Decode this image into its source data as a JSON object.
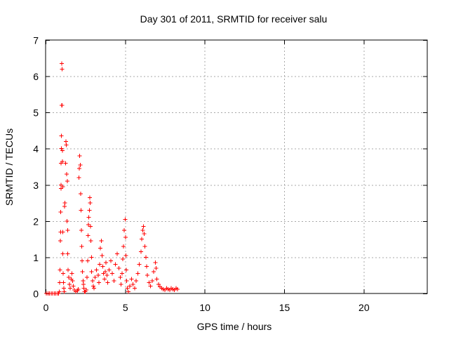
{
  "chart_data": {
    "type": "scatter",
    "title": "Day 301 of 2011, SRMTID for receiver salu",
    "xlabel": "GPS time / hours",
    "ylabel": "SRMTID / TECUs",
    "xlim": [
      0,
      24
    ],
    "ylim": [
      0,
      7
    ],
    "xticks": [
      0,
      5,
      10,
      15,
      20
    ],
    "yticks": [
      0,
      1,
      2,
      3,
      4,
      5,
      6,
      7
    ],
    "x_tick_labels": [
      "0",
      "5",
      "10",
      "15",
      "20"
    ],
    "y_tick_labels": [
      "0",
      "1",
      "2",
      "3",
      "4",
      "5",
      "6",
      "7"
    ],
    "grid": true,
    "marker": "+",
    "series": [
      {
        "name": "SRMTID",
        "color": "#ff0000",
        "points": [
          [
            0.05,
            0.0
          ],
          [
            0.15,
            0.0
          ],
          [
            0.25,
            0.0
          ],
          [
            0.35,
            0.0
          ],
          [
            0.45,
            0.0
          ],
          [
            0.55,
            0.0
          ],
          [
            0.65,
            0.0
          ],
          [
            0.75,
            0.0
          ],
          [
            0.82,
            0.0
          ],
          [
            0.85,
            0.05
          ],
          [
            0.88,
            0.3
          ],
          [
            0.9,
            0.65
          ],
          [
            0.92,
            1.45
          ],
          [
            0.94,
            1.7
          ],
          [
            0.95,
            2.25
          ],
          [
            0.96,
            2.9
          ],
          [
            0.97,
            3.0
          ],
          [
            0.98,
            3.6
          ],
          [
            0.99,
            4.0
          ],
          [
            1.0,
            4.35
          ],
          [
            1.01,
            5.2
          ],
          [
            1.02,
            6.35
          ],
          [
            1.03,
            6.2
          ],
          [
            1.04,
            5.2
          ],
          [
            1.05,
            3.95
          ],
          [
            1.06,
            3.65
          ],
          [
            1.07,
            2.95
          ],
          [
            1.08,
            1.7
          ],
          [
            1.09,
            1.1
          ],
          [
            1.1,
            0.55
          ],
          [
            1.12,
            0.3
          ],
          [
            1.15,
            0.15
          ],
          [
            1.18,
            0.05
          ],
          [
            1.2,
            2.4
          ],
          [
            1.22,
            2.5
          ],
          [
            1.25,
            3.6
          ],
          [
            1.28,
            4.2
          ],
          [
            1.3,
            4.1
          ],
          [
            1.32,
            3.3
          ],
          [
            1.35,
            2.0
          ],
          [
            1.36,
            3.1
          ],
          [
            1.38,
            1.75
          ],
          [
            1.4,
            1.1
          ],
          [
            1.42,
            0.65
          ],
          [
            1.45,
            0.45
          ],
          [
            1.5,
            0.25
          ],
          [
            1.55,
            0.15
          ],
          [
            1.6,
            0.4
          ],
          [
            1.65,
            0.55
          ],
          [
            1.7,
            0.35
          ],
          [
            1.75,
            0.2
          ],
          [
            1.8,
            0.1
          ],
          [
            1.9,
            0.05
          ],
          [
            2.0,
            0.08
          ],
          [
            2.05,
            0.12
          ],
          [
            2.1,
            3.2
          ],
          [
            2.12,
            3.45
          ],
          [
            2.15,
            3.8
          ],
          [
            2.18,
            3.55
          ],
          [
            2.2,
            2.75
          ],
          [
            2.22,
            2.3
          ],
          [
            2.25,
            1.75
          ],
          [
            2.28,
            1.3
          ],
          [
            2.3,
            0.9
          ],
          [
            2.32,
            0.6
          ],
          [
            2.35,
            0.35
          ],
          [
            2.38,
            0.25
          ],
          [
            2.4,
            0.15
          ],
          [
            2.45,
            0.05
          ],
          [
            2.5,
            0.05
          ],
          [
            2.55,
            0.1
          ],
          [
            2.6,
            0.45
          ],
          [
            2.65,
            0.9
          ],
          [
            2.68,
            1.6
          ],
          [
            2.7,
            1.9
          ],
          [
            2.72,
            2.1
          ],
          [
            2.75,
            2.3
          ],
          [
            2.78,
            2.65
          ],
          [
            2.8,
            2.5
          ],
          [
            2.82,
            1.85
          ],
          [
            2.85,
            1.45
          ],
          [
            2.88,
            1.0
          ],
          [
            2.9,
            0.6
          ],
          [
            2.95,
            0.35
          ],
          [
            3.0,
            0.2
          ],
          [
            3.05,
            0.15
          ],
          [
            3.1,
            0.45
          ],
          [
            3.2,
            0.65
          ],
          [
            3.3,
            0.5
          ],
          [
            3.35,
            0.3
          ],
          [
            3.4,
            0.8
          ],
          [
            3.45,
            1.25
          ],
          [
            3.5,
            1.45
          ],
          [
            3.55,
            1.05
          ],
          [
            3.6,
            0.75
          ],
          [
            3.65,
            0.55
          ],
          [
            3.7,
            0.4
          ],
          [
            3.75,
            0.6
          ],
          [
            3.8,
            0.85
          ],
          [
            3.85,
            0.5
          ],
          [
            3.9,
            0.3
          ],
          [
            4.0,
            0.65
          ],
          [
            4.1,
            0.9
          ],
          [
            4.2,
            0.55
          ],
          [
            4.3,
            0.35
          ],
          [
            4.4,
            0.8
          ],
          [
            4.5,
            1.1
          ],
          [
            4.6,
            0.7
          ],
          [
            4.7,
            0.45
          ],
          [
            4.75,
            0.25
          ],
          [
            4.8,
            0.55
          ],
          [
            4.85,
            0.95
          ],
          [
            4.9,
            1.3
          ],
          [
            4.95,
            1.75
          ],
          [
            5.0,
            2.05
          ],
          [
            5.02,
            1.55
          ],
          [
            5.05,
            1.05
          ],
          [
            5.08,
            0.65
          ],
          [
            5.1,
            0.35
          ],
          [
            5.15,
            0.15
          ],
          [
            5.2,
            0.05
          ],
          [
            5.3,
            0.2
          ],
          [
            5.4,
            0.4
          ],
          [
            5.5,
            0.25
          ],
          [
            5.6,
            0.15
          ],
          [
            5.7,
            0.35
          ],
          [
            5.8,
            0.55
          ],
          [
            5.9,
            0.8
          ],
          [
            6.0,
            1.15
          ],
          [
            6.05,
            1.5
          ],
          [
            6.1,
            1.75
          ],
          [
            6.15,
            1.85
          ],
          [
            6.2,
            1.65
          ],
          [
            6.25,
            1.3
          ],
          [
            6.3,
            1.0
          ],
          [
            6.35,
            0.75
          ],
          [
            6.4,
            0.5
          ],
          [
            6.5,
            0.3
          ],
          [
            6.6,
            0.2
          ],
          [
            6.7,
            0.35
          ],
          [
            6.8,
            0.6
          ],
          [
            6.9,
            0.85
          ],
          [
            6.95,
            0.7
          ],
          [
            7.0,
            0.4
          ],
          [
            7.1,
            0.25
          ],
          [
            7.2,
            0.18
          ],
          [
            7.3,
            0.15
          ],
          [
            7.4,
            0.12
          ],
          [
            7.5,
            0.1
          ],
          [
            7.6,
            0.15
          ],
          [
            7.7,
            0.12
          ],
          [
            7.8,
            0.1
          ],
          [
            7.9,
            0.15
          ],
          [
            8.0,
            0.12
          ],
          [
            8.1,
            0.1
          ],
          [
            8.2,
            0.15
          ],
          [
            8.3,
            0.12
          ]
        ]
      }
    ]
  }
}
